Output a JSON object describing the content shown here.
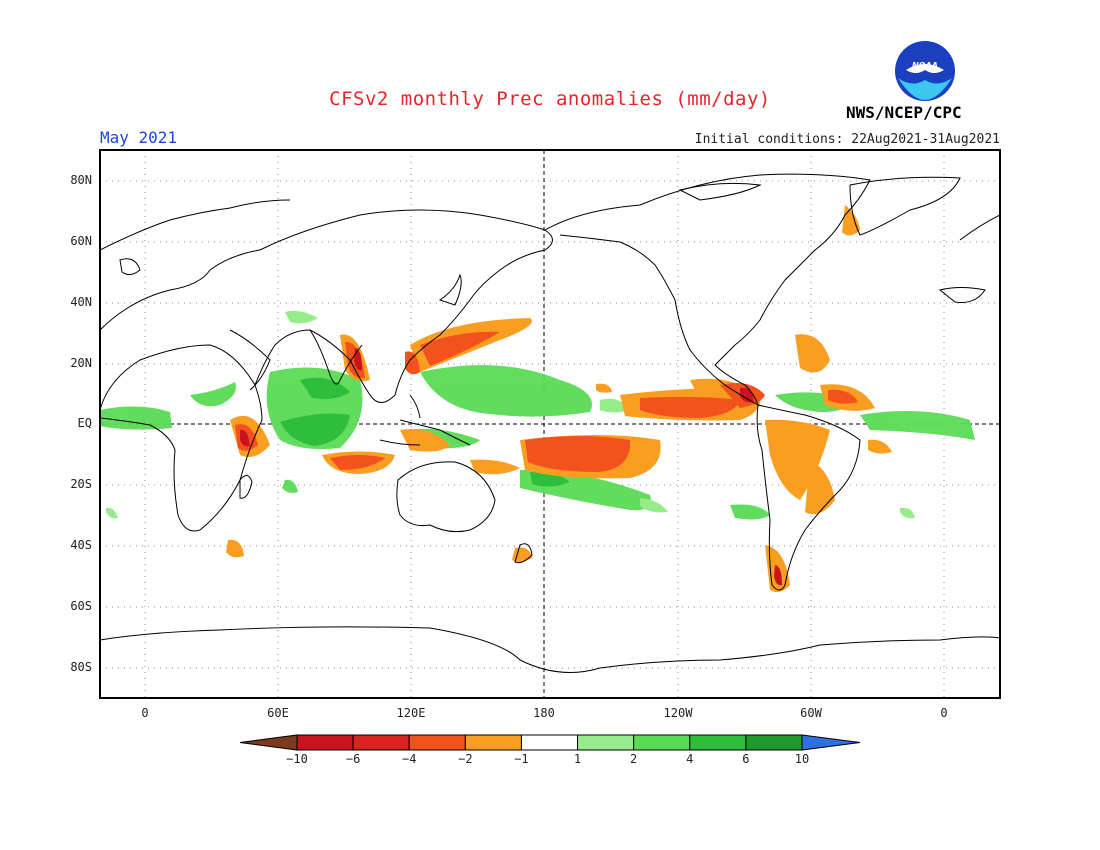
{
  "title": "CFSv2 monthly Prec anomalies (mm/day)",
  "target_month": "May 2021",
  "initial_conditions": "Initial conditions: 22Aug2021-31Aug2021",
  "agency": "NWS/NCEP/CPC",
  "logo_text": "NOAA",
  "lat_labels": [
    "80N",
    "60N",
    "40N",
    "20N",
    "EQ",
    "20S",
    "40S",
    "60S",
    "80S"
  ],
  "lon_labels": [
    "0",
    "60E",
    "120E",
    "180",
    "120W",
    "60W",
    "0"
  ],
  "colorbar": {
    "labels": [
      "-10",
      "-6",
      "-4",
      "-2",
      "-1",
      "1",
      "2",
      "4",
      "6",
      "10"
    ],
    "colors": [
      "#7b3b1c",
      "#c8141e",
      "#d9231d",
      "#f3521c",
      "#f99e20",
      "#ffffff",
      "#96ec8a",
      "#5adb55",
      "#2fbe3c",
      "#1e9a2c",
      "#2f6fe0"
    ]
  }
}
